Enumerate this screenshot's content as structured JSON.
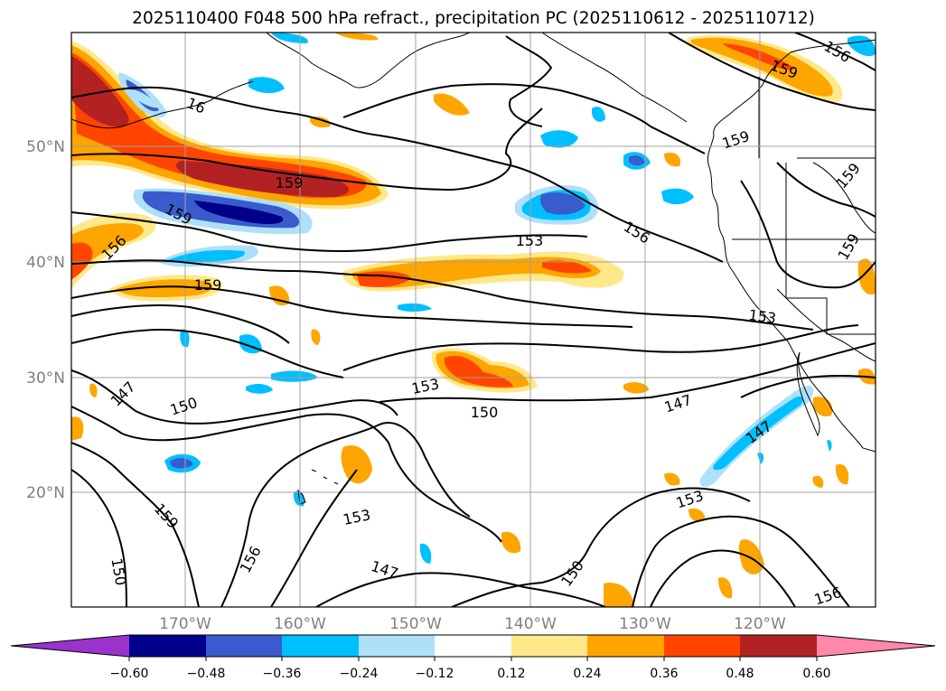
{
  "title": "2025110400 F048 500 hPa refract., precipitation PC (2025110612 - 2025110712)",
  "map": {
    "lat_labels": [
      "50°N",
      "40°N",
      "30°N",
      "20°N"
    ],
    "lon_labels": [
      "170°W",
      "160°W",
      "150°W",
      "140°W",
      "130°W",
      "120°W"
    ],
    "grid_color": "#a0a0a0",
    "contour_labels": [
      "159",
      "159",
      "159",
      "159",
      "159",
      "159",
      "159",
      "159",
      "156",
      "156",
      "156",
      "156",
      "156",
      "153",
      "153",
      "153",
      "153",
      "153",
      "150",
      "150",
      "150",
      "150",
      "147",
      "147",
      "147",
      "147",
      "16"
    ]
  },
  "colorbar": {
    "tick_labels": [
      "−0.60",
      "−0.48",
      "−0.36",
      "−0.24",
      "−0.12",
      "0.12",
      "0.24",
      "0.36",
      "0.48",
      "0.60"
    ],
    "colors": [
      "#9933cc",
      "#00008b",
      "#3a5bcc",
      "#00bfff",
      "#aee0fa",
      "#ffffff",
      "#ffe88a",
      "#ffa500",
      "#ff4500",
      "#b22222",
      "#ff88aa"
    ]
  }
}
